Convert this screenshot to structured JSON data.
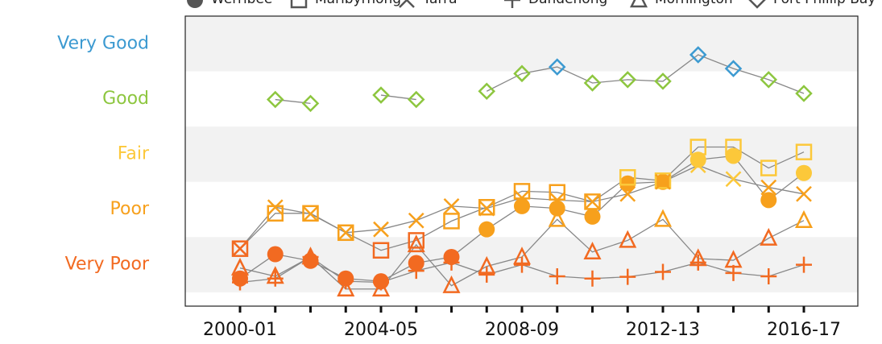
{
  "chart_data": {
    "type": "line",
    "categories": [
      "2000-01",
      null,
      null,
      null,
      "2004-05",
      null,
      null,
      null,
      "2008-09",
      null,
      null,
      null,
      "2012-13",
      null,
      null,
      null,
      "2016-17"
    ],
    "ylim": [
      -0.25,
      5
    ],
    "yticks": [
      {
        "value": 0.5,
        "label": "Very Poor",
        "color": "#f26a21"
      },
      {
        "value": 1.5,
        "label": "Poor",
        "color": "#f7a01c"
      },
      {
        "value": 2.5,
        "label": "Fair",
        "color": "#fcc83a"
      },
      {
        "value": 3.5,
        "label": "Good",
        "color": "#8dc63f"
      },
      {
        "value": 4.5,
        "label": "Very Good",
        "color": "#3c9ad1"
      }
    ],
    "series": [
      {
        "name": "Werribee",
        "marker": "circle",
        "color": "#888888",
        "values": [
          0.25,
          0.69,
          0.57,
          0.25,
          0.2,
          0.53,
          0.64,
          1.14,
          1.56,
          1.52,
          1.37,
          1.97,
          2.0,
          2.4,
          2.47,
          1.67,
          2.16
        ]
      },
      {
        "name": "Maribyrnong",
        "marker": "square",
        "color": "#888888",
        "values": [
          0.79,
          1.43,
          1.43,
          1.08,
          0.76,
          0.94,
          1.29,
          1.54,
          1.83,
          1.81,
          1.64,
          2.08,
          2.02,
          2.63,
          2.63,
          2.25,
          2.54
        ]
      },
      {
        "name": "Yarra",
        "marker": "x",
        "color": "#888888",
        "values": [
          0.79,
          1.54,
          1.42,
          1.08,
          1.14,
          1.3,
          1.56,
          1.52,
          1.71,
          1.67,
          1.64,
          1.78,
          2.0,
          2.3,
          2.05,
          1.9,
          1.78
        ]
      },
      {
        "name": "Dandenong",
        "marker": "plus",
        "color": "#888888",
        "values": [
          0.18,
          0.25,
          0.64,
          0.2,
          0.18,
          0.39,
          0.54,
          0.32,
          0.5,
          0.29,
          0.25,
          0.28,
          0.37,
          0.54,
          0.35,
          0.29,
          0.5
        ]
      },
      {
        "name": "Mornington",
        "marker": "triangle",
        "color": "#888888",
        "values": [
          0.44,
          0.29,
          0.64,
          0.06,
          0.06,
          0.86,
          0.12,
          0.47,
          0.64,
          1.32,
          0.73,
          0.94,
          1.32,
          0.61,
          0.58,
          0.98,
          1.3
        ]
      },
      {
        "name": "Port Phillip Bay",
        "marker": "diamond",
        "color": "#888888",
        "values": [
          null,
          3.49,
          3.42,
          null,
          3.57,
          3.49,
          null,
          3.64,
          3.96,
          4.08,
          3.79,
          3.85,
          3.82,
          4.3,
          4.05,
          3.85,
          3.6
        ]
      }
    ]
  }
}
